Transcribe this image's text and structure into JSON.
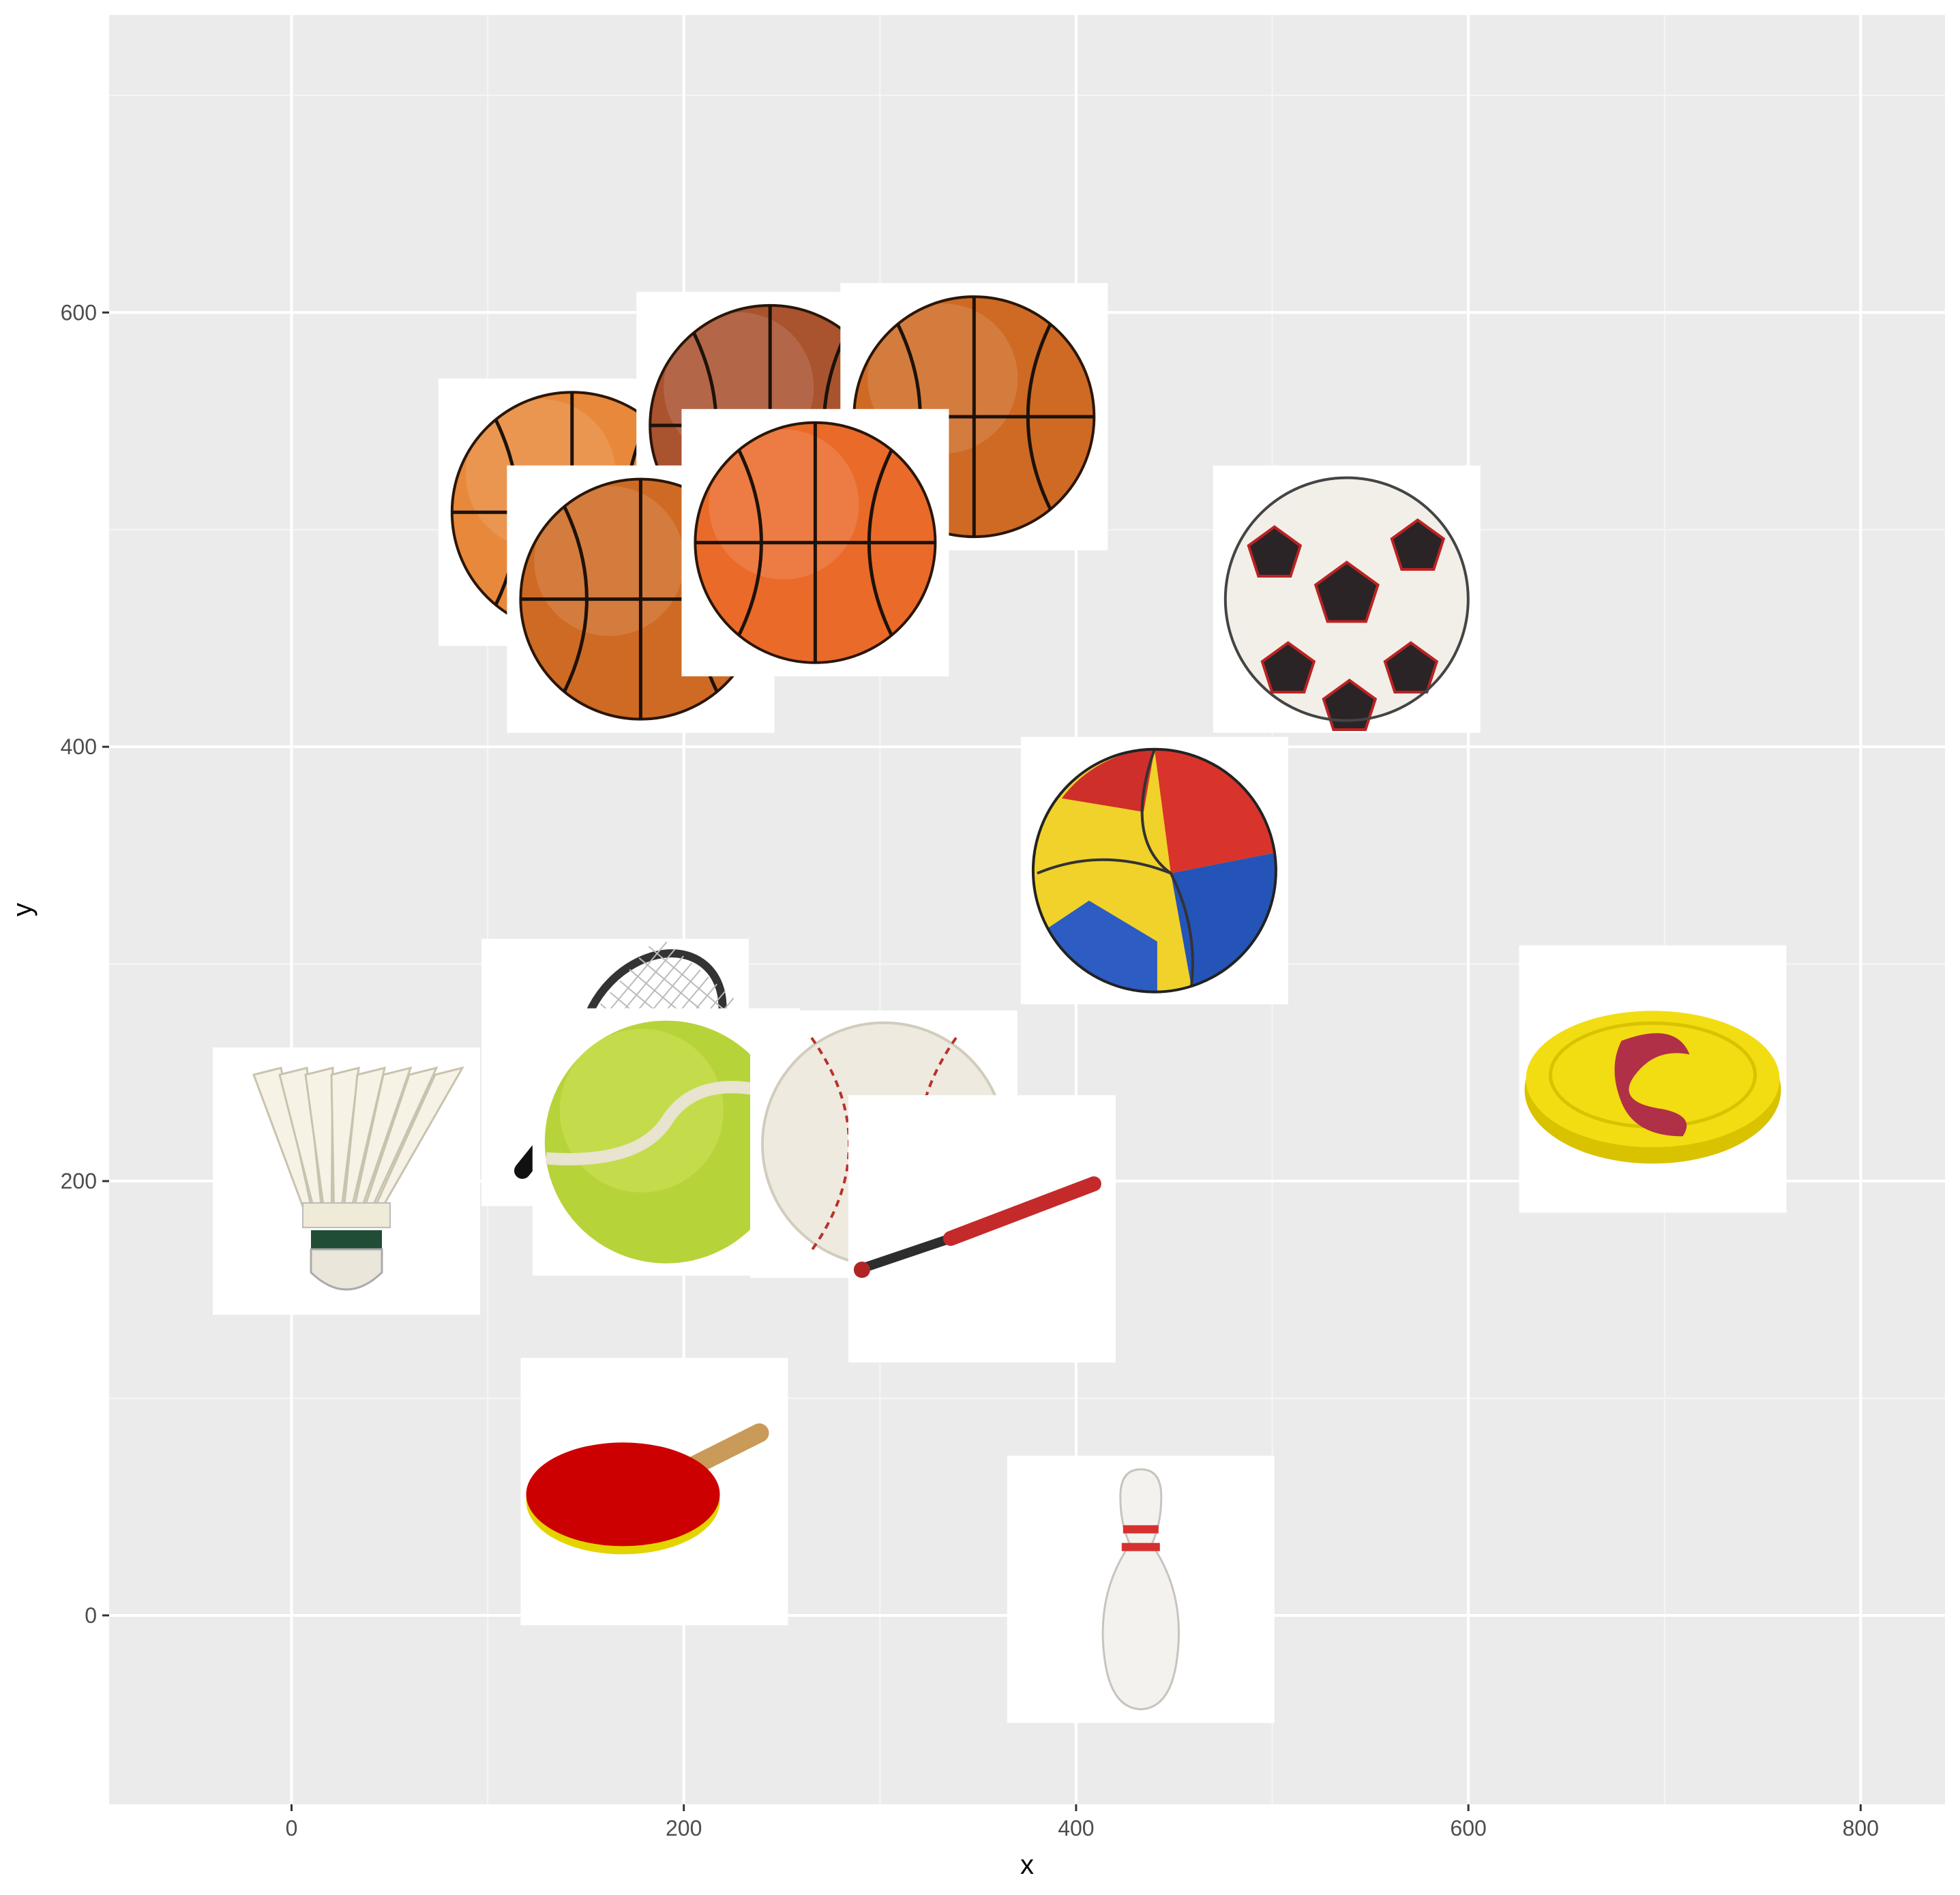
{
  "chart_data": {
    "type": "scatter",
    "marker": "image",
    "title": "",
    "xlabel": "x",
    "ylabel": "y",
    "xlim": [
      -93,
      843
    ],
    "ylim": [
      -87,
      737
    ],
    "x_ticks": [
      0,
      200,
      400,
      600,
      800
    ],
    "y_ticks": [
      0,
      200,
      400,
      600
    ],
    "grid": true,
    "legend": "none",
    "colors": {
      "panel_bg": "#EBEBEB",
      "grid_major": "#FFFFFF",
      "grid_minor": "#F5F5F5",
      "tick_text": "#4D4D4D",
      "tick_mark": "#333333"
    },
    "points": [
      {
        "x": 143,
        "y": 508,
        "icon": "basketball-icon",
        "style": "orange-light"
      },
      {
        "x": 244,
        "y": 548,
        "icon": "basketball-icon",
        "style": "brown"
      },
      {
        "x": 348,
        "y": 552,
        "icon": "basketball-icon",
        "style": "orange-dark"
      },
      {
        "x": 178,
        "y": 468,
        "icon": "basketball-icon",
        "style": "orange-dark"
      },
      {
        "x": 267,
        "y": 494,
        "icon": "basketball-icon",
        "style": "orange-bright"
      },
      {
        "x": 538,
        "y": 468,
        "icon": "soccer-ball-icon"
      },
      {
        "x": 440,
        "y": 343,
        "icon": "volleyball-icon"
      },
      {
        "x": 694,
        "y": 247,
        "icon": "frisbee-icon"
      },
      {
        "x": 28,
        "y": 200,
        "icon": "shuttlecock-icon"
      },
      {
        "x": 165,
        "y": 250,
        "icon": "tennis-racket-icon"
      },
      {
        "x": 191,
        "y": 218,
        "icon": "tennis-ball-icon"
      },
      {
        "x": 302,
        "y": 217,
        "icon": "baseball-icon"
      },
      {
        "x": 352,
        "y": 178,
        "icon": "baseball-bat-icon"
      },
      {
        "x": 185,
        "y": 57,
        "icon": "ping-pong-paddle-icon"
      },
      {
        "x": 433,
        "y": 12,
        "icon": "bowling-pin-icon"
      }
    ]
  }
}
